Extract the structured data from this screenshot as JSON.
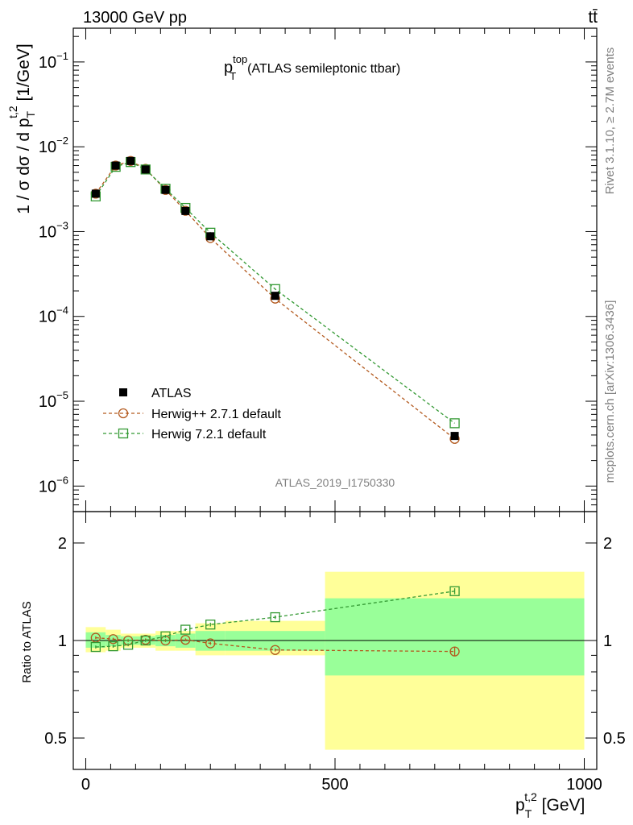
{
  "header": {
    "energy_label": "13000 GeV pp",
    "process_label": "tt̄"
  },
  "side_labels": {
    "rivet": "Rivet 3.1.10, ≥ 2.7M events",
    "mcplots": "mcplots.cern.ch [arXiv:1306.3436]"
  },
  "colors": {
    "data": "#000000",
    "herwigpp": "#b35a1f",
    "herwig7": "#339933",
    "band_outer": "#ffff99",
    "band_inner": "#99ff99"
  },
  "chart_data": [
    {
      "type": "scatter",
      "panel": "main",
      "title_main": "p",
      "title_sup": "top",
      "title_sub": "T",
      "title_rest": "(ATLAS semileptonic ttbar)",
      "ylabel": "1 / σ dσ / d p_T^{t,2} [1/GeV]",
      "yscale": "log",
      "ylim": [
        5e-07,
        0.25
      ],
      "xlim": [
        -25,
        1025
      ],
      "y_ticks": [
        {
          "value": 0.1,
          "base": "10",
          "exp": "−1"
        },
        {
          "value": 0.01,
          "base": "10",
          "exp": "−2"
        },
        {
          "value": 0.001,
          "base": "10",
          "exp": "−3"
        },
        {
          "value": 0.0001,
          "base": "10",
          "exp": "−4"
        },
        {
          "value": 1e-05,
          "base": "10",
          "exp": "−5"
        },
        {
          "value": 1e-06,
          "base": "10",
          "exp": "−6"
        }
      ],
      "watermark": "ATLAS_2019_I1750330",
      "x": [
        20,
        60,
        90,
        120,
        160,
        200,
        250,
        380,
        740
      ],
      "series": [
        {
          "name": "ATLAS",
          "key": "data",
          "marker": "square-filled",
          "values": [
            0.0028,
            0.006,
            0.0068,
            0.0054,
            0.0031,
            0.00175,
            0.00088,
            0.000175,
            3.9e-06
          ]
        },
        {
          "name": "Herwig++ 2.7.1 default",
          "key": "herwigpp",
          "marker": "circle-open",
          "values": [
            0.0028,
            0.006,
            0.0068,
            0.0055,
            0.0031,
            0.00176,
            0.00084,
            0.000162,
            3.6e-06
          ]
        },
        {
          "name": "Herwig 7.2.1 default",
          "key": "herwig7",
          "marker": "square-open",
          "values": [
            0.0026,
            0.0058,
            0.0066,
            0.0054,
            0.0032,
            0.0019,
            0.00097,
            0.00021,
            5.5e-06
          ]
        }
      ]
    },
    {
      "type": "line",
      "panel": "ratio",
      "ylabel": "Ratio to ATLAS",
      "xlabel": "p_T^{t,2} [GeV]",
      "xlim": [
        -25,
        1025
      ],
      "ylim": [
        0.4,
        2.5
      ],
      "x_ticks": [
        0,
        500,
        1000
      ],
      "y_ticks": [
        0.5,
        1,
        2
      ],
      "bins": [
        0,
        40,
        70,
        105,
        140,
        180,
        220,
        280,
        480,
        1000
      ],
      "band_inner": [
        [
          0.95,
          1.06
        ],
        [
          0.96,
          1.04
        ],
        [
          0.97,
          1.03
        ],
        [
          0.97,
          1.03
        ],
        [
          0.96,
          1.04
        ],
        [
          0.95,
          1.05
        ],
        [
          0.93,
          1.07
        ],
        [
          0.93,
          1.07
        ],
        [
          0.78,
          1.35
        ]
      ],
      "band_outer": [
        [
          0.92,
          1.1
        ],
        [
          0.93,
          1.08
        ],
        [
          0.95,
          1.05
        ],
        [
          0.95,
          1.05
        ],
        [
          0.93,
          1.07
        ],
        [
          0.93,
          1.07
        ],
        [
          0.9,
          1.13
        ],
        [
          0.9,
          1.15
        ],
        [
          0.46,
          1.63
        ]
      ],
      "x": [
        20,
        55,
        85,
        120,
        160,
        200,
        250,
        380,
        740
      ],
      "series": [
        {
          "name": "Herwig++ 2.7.1 default",
          "key": "herwigpp",
          "marker": "circle-open",
          "values": [
            1.02,
            1.01,
            1.0,
            1.005,
            1.0,
            1.005,
            0.98,
            0.935,
            0.925
          ],
          "err": [
            0.01,
            0.01,
            0.01,
            0.01,
            0.01,
            0.01,
            0.01,
            0.01,
            0.03
          ]
        },
        {
          "name": "Herwig 7.2.1 default",
          "key": "herwig7",
          "marker": "square-open",
          "values": [
            0.955,
            0.96,
            0.97,
            1.0,
            1.03,
            1.08,
            1.12,
            1.18,
            1.42
          ],
          "err": [
            0.01,
            0.01,
            0.01,
            0.01,
            0.01,
            0.01,
            0.015,
            0.015,
            0.03
          ]
        }
      ]
    }
  ]
}
